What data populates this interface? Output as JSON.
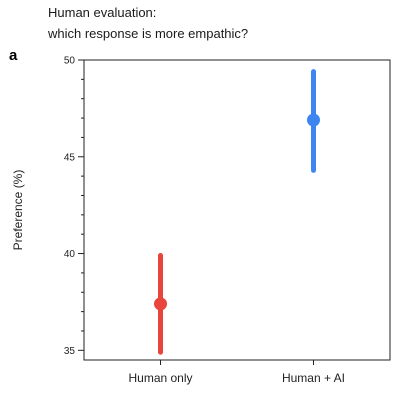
{
  "figure": {
    "title_line1": "Human evaluation:",
    "title_line2": "which response is more empathic?",
    "panel_label": "a"
  },
  "chart_data": {
    "type": "scatter",
    "title": "Human evaluation: which response is more empathic?",
    "xlabel": "",
    "ylabel": "Preference (%)",
    "categories": [
      "Human only",
      "Human + AI"
    ],
    "ylim": [
      34.5,
      50
    ],
    "yticks_major": [
      35,
      40,
      45,
      50
    ],
    "yticks_minor_step": 1,
    "grid": false,
    "points": [
      {
        "category": "Human only",
        "value": 37.4,
        "low": 34.9,
        "high": 39.9,
        "color": "#e8453c"
      },
      {
        "category": "Human + AI",
        "value": 46.9,
        "low": 44.3,
        "high": 49.4,
        "color": "#3d85f0"
      }
    ]
  }
}
